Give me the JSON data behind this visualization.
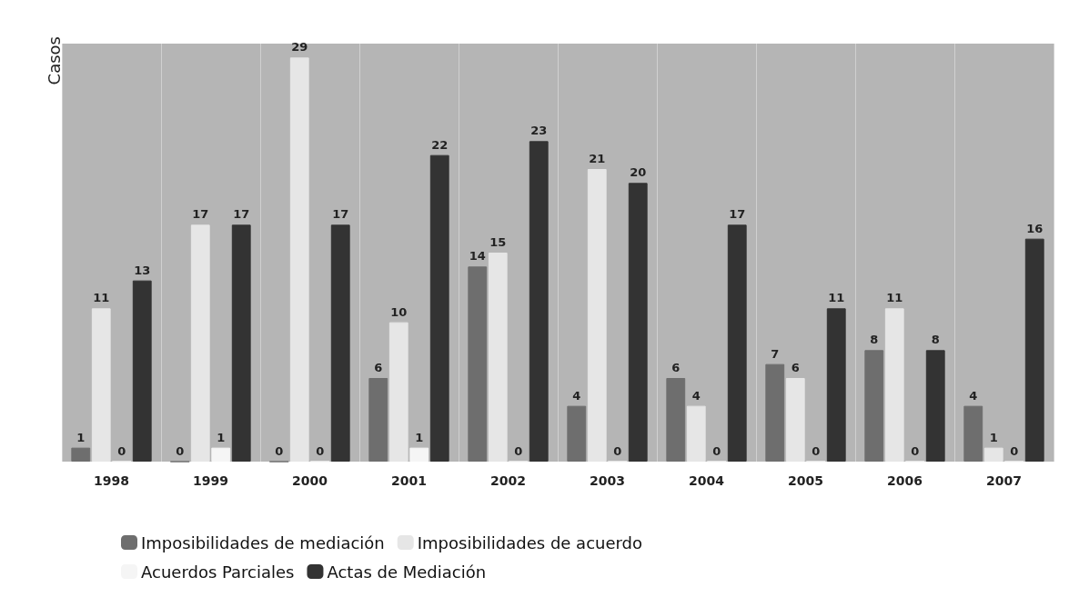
{
  "chart_data": {
    "type": "bar",
    "ylabel": "Casos",
    "categories": [
      "1998",
      "1999",
      "2000",
      "2001",
      "2002",
      "2003",
      "2004",
      "2005",
      "2006",
      "2007"
    ],
    "series": [
      {
        "name": "Imposibilidades de mediación",
        "color": "#6e6e6e",
        "values": [
          1,
          0,
          0,
          6,
          14,
          4,
          6,
          7,
          8,
          4
        ]
      },
      {
        "name": "Imposibilidades de acuerdo",
        "color": "#e6e6e6",
        "values": [
          11,
          17,
          29,
          10,
          15,
          21,
          4,
          6,
          11,
          1
        ]
      },
      {
        "name": "Acuerdos Parciales",
        "color": "#f5f5f5",
        "values": [
          0,
          1,
          0,
          1,
          0,
          0,
          0,
          0,
          0,
          0
        ]
      },
      {
        "name": "Actas de Mediación",
        "color": "#333333",
        "values": [
          13,
          17,
          17,
          22,
          23,
          20,
          17,
          11,
          8,
          16
        ]
      }
    ],
    "data_labels": true,
    "grid": "x",
    "legend": "bottom",
    "tick_labels": "x"
  }
}
